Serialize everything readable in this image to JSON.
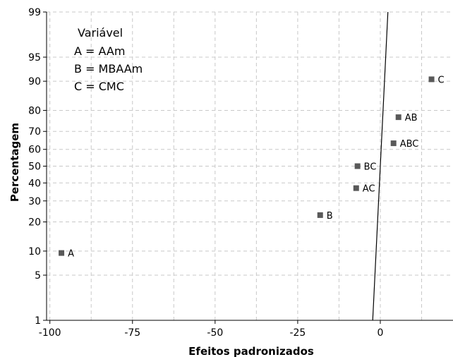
{
  "chart_data": {
    "type": "scatter",
    "title": "",
    "xlabel": "Efeitos padronizados",
    "ylabel": "Percentagem",
    "xlim": [
      -101,
      22
    ],
    "ylim": [
      1,
      99
    ],
    "y_scale": "normal-probability",
    "grid": true,
    "x_ticks": [
      -100,
      -75,
      -50,
      -25,
      0
    ],
    "x_tick_labels": [
      "-100",
      "-75",
      "-50",
      "-25",
      "0"
    ],
    "x_minor_grid": [
      -87.5,
      -62.5,
      -37.5,
      -12.5,
      12.5
    ],
    "y_ticks": [
      1,
      5,
      10,
      20,
      30,
      40,
      50,
      60,
      70,
      80,
      90,
      95,
      99
    ],
    "y_tick_labels": [
      "1",
      "5",
      "10",
      "20",
      "30",
      "40",
      "50",
      "60",
      "70",
      "80",
      "90",
      "95",
      "99"
    ],
    "points": [
      {
        "label": "A",
        "x": -96.5,
        "y": 9.5
      },
      {
        "label": "B",
        "x": -18.2,
        "y": 23.0
      },
      {
        "label": "AC",
        "x": -7.3,
        "y": 37.0
      },
      {
        "label": "BC",
        "x": -6.9,
        "y": 50.0
      },
      {
        "label": "ABC",
        "x": 4.0,
        "y": 63.5
      },
      {
        "label": "AB",
        "x": 5.5,
        "y": 77.0
      },
      {
        "label": "C",
        "x": 15.5,
        "y": 90.5
      }
    ],
    "reference_line": {
      "x_at_y1": -2.3,
      "x_at_y99": 2.3
    },
    "legend": {
      "title": "Variável",
      "entries": [
        "A = AAm",
        "B  = MBAAm",
        "C  = CMC"
      ],
      "position": "top-left"
    },
    "colors": {
      "marker": "#595959",
      "grid": "#c8c8c8",
      "line": "#000000"
    }
  }
}
